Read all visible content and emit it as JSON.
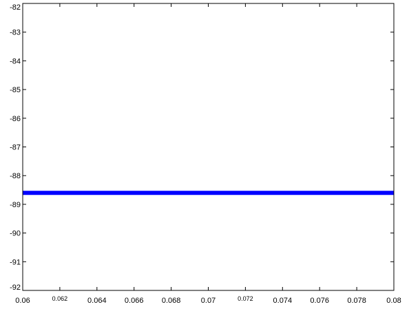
{
  "chart_data": {
    "type": "line",
    "title": "",
    "xlabel": "",
    "ylabel": "",
    "xlim": [
      0.06,
      0.08
    ],
    "ylim": [
      -92,
      -82
    ],
    "grid": false,
    "x_ticks": [
      0.06,
      0.062,
      0.064,
      0.066,
      0.068,
      0.07,
      0.072,
      0.074,
      0.076,
      0.078,
      0.08
    ],
    "x_tick_labels": [
      "0.06",
      "0.062",
      "0.064",
      "0.066",
      "0.068",
      "0.07",
      "0.072",
      "0.074",
      "0.076",
      "0.078",
      "0.08"
    ],
    "y_ticks": [
      -82,
      -83,
      -84,
      -85,
      -86,
      -87,
      -88,
      -89,
      -90,
      -91,
      -92
    ],
    "y_tick_labels": [
      "-82",
      "-83",
      "-84",
      "-85",
      "-86",
      "-87",
      "-88",
      "-89",
      "-90",
      "-91",
      "-92"
    ],
    "series": [
      {
        "color": "#0000ff",
        "x": [
          0.06,
          0.08
        ],
        "y": [
          -88.6,
          -88.6
        ]
      }
    ]
  }
}
